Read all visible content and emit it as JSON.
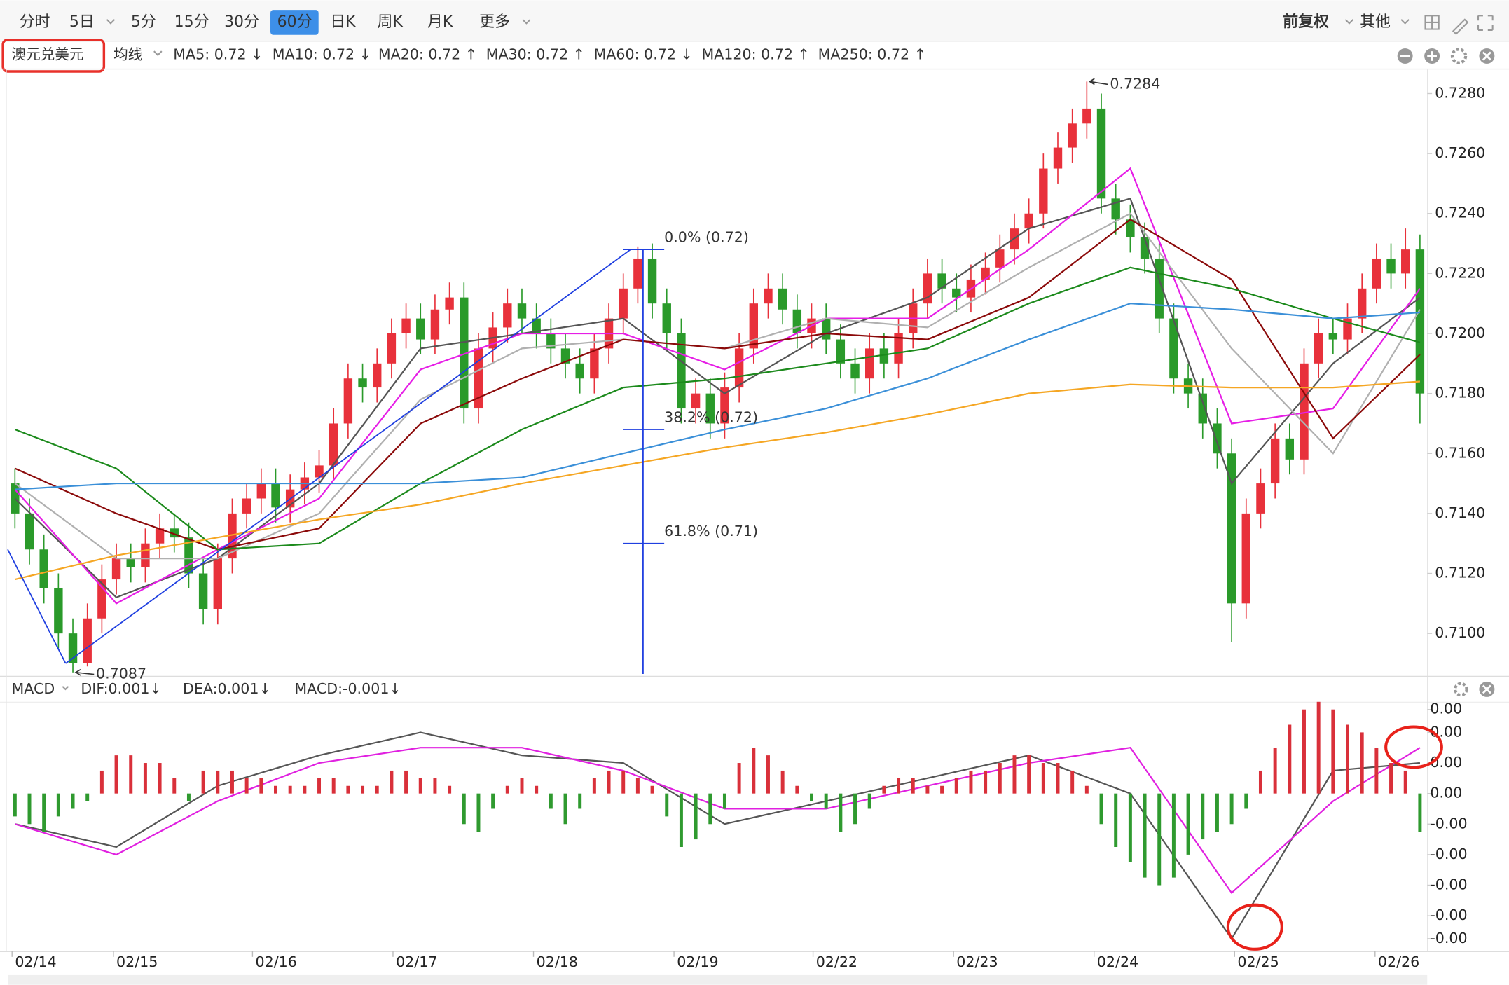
{
  "toolbar": {
    "tabs": [
      "分时",
      "5日",
      "5分",
      "15分",
      "30分",
      "60分",
      "日K",
      "周K",
      "月K",
      "更多"
    ],
    "selected": 5,
    "right": [
      "前复权",
      "其他"
    ]
  },
  "chart_data": [
    {
      "type": "candlestick",
      "title": "澳元兑美元",
      "indicator": "均线",
      "up_color": "#e8313b",
      "down_color": "#2a9a2a",
      "xlim": [
        -0.5,
        97.5
      ],
      "xticks": [
        {
          "value": -0.2,
          "label": "02/14"
        },
        {
          "value": 6.8,
          "label": "02/15"
        },
        {
          "value": 16.4,
          "label": "02/16"
        },
        {
          "value": 26.1,
          "label": "02/17"
        },
        {
          "value": 35.8,
          "label": "02/18"
        },
        {
          "value": 45.5,
          "label": "02/19"
        },
        {
          "value": 55.1,
          "label": "02/22"
        },
        {
          "value": 64.8,
          "label": "02/23"
        },
        {
          "value": 74.5,
          "label": "02/24"
        },
        {
          "value": 84.2,
          "label": "02/25"
        },
        {
          "value": 93.9,
          "label": "02/26"
        }
      ],
      "ylim": [
        0.70865,
        0.7288
      ],
      "yticks": [
        {
          "value": 0.71,
          "label": "0.7100"
        },
        {
          "value": 0.712,
          "label": "0.7120"
        },
        {
          "value": 0.714,
          "label": "0.7140"
        },
        {
          "value": 0.716,
          "label": "0.7160"
        },
        {
          "value": 0.718,
          "label": "0.7180"
        },
        {
          "value": 0.72,
          "label": "0.7200"
        },
        {
          "value": 0.722,
          "label": "0.7220"
        },
        {
          "value": 0.724,
          "label": "0.7240"
        },
        {
          "value": 0.726,
          "label": "0.7260"
        },
        {
          "value": 0.728,
          "label": "0.7280"
        }
      ],
      "open": [
        0.715,
        0.714,
        0.7128,
        0.7115,
        0.71,
        0.709,
        0.7105,
        0.7118,
        0.7125,
        0.7122,
        0.713,
        0.7135,
        0.7132,
        0.712,
        0.7108,
        0.7125,
        0.714,
        0.7145,
        0.715,
        0.7142,
        0.7148,
        0.7152,
        0.7156,
        0.717,
        0.7185,
        0.7182,
        0.719,
        0.72,
        0.7205,
        0.7198,
        0.7208,
        0.7212,
        0.7175,
        0.7195,
        0.7202,
        0.721,
        0.7205,
        0.72,
        0.7195,
        0.719,
        0.7185,
        0.7195,
        0.7205,
        0.7215,
        0.7225,
        0.721,
        0.72,
        0.7175,
        0.718,
        0.717,
        0.7182,
        0.7195,
        0.721,
        0.7215,
        0.7208,
        0.72,
        0.7205,
        0.7198,
        0.719,
        0.7185,
        0.7195,
        0.719,
        0.72,
        0.721,
        0.722,
        0.7215,
        0.7212,
        0.7218,
        0.7222,
        0.7228,
        0.7235,
        0.724,
        0.7255,
        0.7262,
        0.727,
        0.7275,
        0.7245,
        0.7238,
        0.7232,
        0.7225,
        0.7205,
        0.7185,
        0.718,
        0.717,
        0.716,
        0.711,
        0.714,
        0.715,
        0.7165,
        0.7158,
        0.719,
        0.72,
        0.7198,
        0.7205,
        0.7215,
        0.7225,
        0.722,
        0.7228
      ],
      "high": [
        0.7155,
        0.7145,
        0.7133,
        0.712,
        0.7105,
        0.711,
        0.7123,
        0.713,
        0.713,
        0.7135,
        0.714,
        0.714,
        0.7137,
        0.7125,
        0.713,
        0.7145,
        0.715,
        0.7155,
        0.7155,
        0.7153,
        0.7157,
        0.7161,
        0.7175,
        0.719,
        0.719,
        0.7195,
        0.7205,
        0.721,
        0.721,
        0.7213,
        0.7217,
        0.7217,
        0.72,
        0.7207,
        0.7215,
        0.7215,
        0.721,
        0.7205,
        0.72,
        0.7195,
        0.72,
        0.721,
        0.722,
        0.7229,
        0.723,
        0.7215,
        0.7205,
        0.7185,
        0.7185,
        0.7187,
        0.72,
        0.7215,
        0.722,
        0.722,
        0.7213,
        0.721,
        0.721,
        0.7203,
        0.7195,
        0.72,
        0.72,
        0.7205,
        0.7215,
        0.7225,
        0.7225,
        0.722,
        0.7223,
        0.7227,
        0.7233,
        0.724,
        0.7245,
        0.726,
        0.7267,
        0.7275,
        0.7284,
        0.728,
        0.725,
        0.7243,
        0.7237,
        0.723,
        0.721,
        0.719,
        0.7185,
        0.7175,
        0.7165,
        0.7145,
        0.7155,
        0.717,
        0.717,
        0.7195,
        0.7205,
        0.7205,
        0.721,
        0.722,
        0.723,
        0.723,
        0.7235,
        0.7233
      ],
      "low": [
        0.7135,
        0.7123,
        0.711,
        0.7095,
        0.7087,
        0.7089,
        0.71,
        0.7113,
        0.7117,
        0.7117,
        0.7125,
        0.7127,
        0.7115,
        0.7103,
        0.7103,
        0.712,
        0.7135,
        0.714,
        0.7137,
        0.7137,
        0.7143,
        0.7147,
        0.7151,
        0.7165,
        0.7177,
        0.7177,
        0.7185,
        0.7195,
        0.7193,
        0.7193,
        0.7203,
        0.717,
        0.717,
        0.719,
        0.7197,
        0.72,
        0.7195,
        0.719,
        0.7185,
        0.718,
        0.718,
        0.719,
        0.72,
        0.721,
        0.7205,
        0.7195,
        0.717,
        0.717,
        0.7165,
        0.7165,
        0.7177,
        0.719,
        0.7205,
        0.7203,
        0.7195,
        0.7195,
        0.7193,
        0.7185,
        0.718,
        0.718,
        0.7185,
        0.7185,
        0.7195,
        0.7205,
        0.721,
        0.7207,
        0.7207,
        0.7213,
        0.7217,
        0.7223,
        0.723,
        0.7235,
        0.725,
        0.7257,
        0.7265,
        0.724,
        0.7233,
        0.7227,
        0.722,
        0.72,
        0.718,
        0.7175,
        0.7165,
        0.7155,
        0.7097,
        0.7105,
        0.7135,
        0.7145,
        0.7153,
        0.7153,
        0.7185,
        0.7193,
        0.7193,
        0.72,
        0.721,
        0.7215,
        0.7215,
        0.717
      ],
      "close": [
        0.714,
        0.7128,
        0.7115,
        0.71,
        0.709,
        0.7105,
        0.7118,
        0.7125,
        0.7122,
        0.713,
        0.7135,
        0.7132,
        0.712,
        0.7108,
        0.7125,
        0.714,
        0.7145,
        0.715,
        0.7142,
        0.7148,
        0.7152,
        0.7156,
        0.717,
        0.7185,
        0.7182,
        0.719,
        0.72,
        0.7205,
        0.7198,
        0.7208,
        0.7212,
        0.7175,
        0.7195,
        0.7202,
        0.721,
        0.7205,
        0.72,
        0.7195,
        0.719,
        0.7185,
        0.7195,
        0.7205,
        0.7215,
        0.7225,
        0.721,
        0.72,
        0.7175,
        0.718,
        0.717,
        0.7182,
        0.7195,
        0.721,
        0.7215,
        0.7208,
        0.72,
        0.7205,
        0.7198,
        0.719,
        0.7185,
        0.7195,
        0.719,
        0.72,
        0.721,
        0.722,
        0.7215,
        0.7212,
        0.7218,
        0.7222,
        0.7228,
        0.7235,
        0.724,
        0.7255,
        0.7262,
        0.727,
        0.7275,
        0.7245,
        0.7238,
        0.7232,
        0.7225,
        0.7205,
        0.7185,
        0.718,
        0.717,
        0.716,
        0.711,
        0.714,
        0.715,
        0.7165,
        0.7158,
        0.719,
        0.72,
        0.7198,
        0.7205,
        0.7215,
        0.7225,
        0.722,
        0.7228,
        0.718
      ],
      "series": [
        {
          "name": "MA5: 0.72 ↓",
          "color": "#555555",
          "x": [
            0,
            7,
            14,
            21,
            28,
            35,
            42,
            49,
            56,
            63,
            70,
            77,
            84,
            91,
            97
          ],
          "values": [
            0.7145,
            0.7112,
            0.7125,
            0.715,
            0.7195,
            0.72,
            0.7205,
            0.718,
            0.72,
            0.7212,
            0.7235,
            0.7245,
            0.715,
            0.719,
            0.7212
          ]
        },
        {
          "name": "MA10: 0.72 ↓",
          "color": "#e61ee6",
          "x": [
            0,
            7,
            14,
            21,
            28,
            35,
            42,
            49,
            56,
            63,
            70,
            77,
            84,
            91,
            97
          ],
          "values": [
            0.7148,
            0.711,
            0.7128,
            0.7145,
            0.7188,
            0.72,
            0.72,
            0.7188,
            0.7205,
            0.7205,
            0.7228,
            0.7255,
            0.717,
            0.7175,
            0.7215
          ]
        },
        {
          "name": "MA20: 0.72 ↑",
          "color": "#b0b0b0",
          "x": [
            0,
            7,
            14,
            21,
            28,
            35,
            42,
            49,
            56,
            63,
            70,
            77,
            84,
            91,
            97
          ],
          "values": [
            0.715,
            0.7125,
            0.7125,
            0.714,
            0.7178,
            0.7195,
            0.7198,
            0.7195,
            0.7205,
            0.7202,
            0.7222,
            0.724,
            0.7195,
            0.716,
            0.7208
          ]
        },
        {
          "name": "MA30: 0.72 ↑",
          "color": "#8b0a0a",
          "x": [
            0,
            7,
            14,
            21,
            28,
            35,
            42,
            49,
            56,
            63,
            70,
            77,
            84,
            91,
            97
          ],
          "values": [
            0.7155,
            0.714,
            0.7128,
            0.7135,
            0.717,
            0.7185,
            0.7198,
            0.7195,
            0.72,
            0.7198,
            0.7212,
            0.7238,
            0.7218,
            0.7165,
            0.7193
          ]
        },
        {
          "name": "MA60: 0.72 ↓",
          "color": "#1c8a1c",
          "x": [
            0,
            7,
            14,
            21,
            28,
            35,
            42,
            49,
            56,
            63,
            70,
            77,
            84,
            91,
            97
          ],
          "values": [
            0.7168,
            0.7155,
            0.7128,
            0.713,
            0.715,
            0.7168,
            0.7182,
            0.7185,
            0.719,
            0.7195,
            0.721,
            0.7222,
            0.7215,
            0.7205,
            0.7197
          ]
        },
        {
          "name": "MA120: 0.72 ↑",
          "color": "#3a8fd8",
          "x": [
            0,
            7,
            14,
            21,
            28,
            35,
            42,
            49,
            56,
            63,
            70,
            77,
            84,
            91,
            97
          ],
          "values": [
            0.7148,
            0.715,
            0.715,
            0.715,
            0.715,
            0.7152,
            0.716,
            0.7168,
            0.7175,
            0.7185,
            0.7198,
            0.721,
            0.7208,
            0.7205,
            0.7207
          ]
        },
        {
          "name": "MA250: 0.72 ↑",
          "color": "#f5a623",
          "x": [
            0,
            7,
            14,
            21,
            28,
            35,
            42,
            49,
            56,
            63,
            70,
            77,
            84,
            91,
            97
          ],
          "values": [
            0.7118,
            0.7126,
            0.7132,
            0.7138,
            0.7143,
            0.715,
            0.7156,
            0.7162,
            0.7167,
            0.7173,
            0.718,
            0.7183,
            0.7182,
            0.7182,
            0.7184
          ]
        }
      ],
      "annotations": [
        {
          "x": 74,
          "value": 0.7284
        },
        {
          "x": 4,
          "value": 0.7087
        }
      ],
      "fibonacci": {
        "color": "#1f3fe0",
        "points": [
          {
            "x": -0.5,
            "value": 0.7128
          },
          {
            "x": 3.5,
            "value": 0.709
          },
          {
            "x": 42.5,
            "value": 0.7228
          }
        ],
        "levels": [
          {
            "value": 0.7228,
            "label": "0.0% (0.72)"
          },
          {
            "value": 0.7168,
            "label": "38.2% (0.72)"
          },
          {
            "value": 0.713,
            "label": "61.8% (0.71)"
          }
        ]
      }
    },
    {
      "type": "macd",
      "title": "MACD",
      "xlim": [
        -0.5,
        97.5
      ],
      "ylim": [
        -0.0020625,
        0.0011875
      ],
      "yticks": [
        {
          "value": 0.0011,
          "label": "0.00"
        },
        {
          "value": 0.0008,
          "label": "0.00"
        },
        {
          "value": 0.0004,
          "label": "0.00"
        },
        {
          "value": 0,
          "label": "0.00"
        },
        {
          "value": -0.0004,
          "label": "-0.00"
        },
        {
          "value": -0.0008,
          "label": "-0.00"
        },
        {
          "value": -0.0012,
          "label": "-0.00"
        },
        {
          "value": -0.0016,
          "label": "-0.00"
        },
        {
          "value": -0.0019,
          "label": "-0.00"
        }
      ],
      "series": [
        {
          "name": "DIF:0.001↓",
          "color": "#555555",
          "x": [
            0,
            7,
            14,
            21,
            28,
            35,
            42,
            49,
            56,
            63,
            70,
            77,
            84,
            91,
            97
          ],
          "values": [
            -0.0004,
            -0.0007,
            0.0001,
            0.0005,
            0.0008,
            0.0005,
            0.0004,
            -0.0004,
            -0.0001,
            0.0002,
            0.0005,
            0.0,
            -0.0019,
            0.0003,
            0.0004
          ]
        },
        {
          "name": "DEA:0.001↓",
          "color": "#e020e0",
          "x": [
            0,
            7,
            14,
            21,
            28,
            35,
            42,
            49,
            56,
            63,
            70,
            77,
            84,
            91,
            97
          ],
          "values": [
            -0.0004,
            -0.0008,
            -0.0001,
            0.0004,
            0.0006,
            0.0006,
            0.0003,
            -0.0002,
            -0.0002,
            0.0001,
            0.0004,
            0.0006,
            -0.0013,
            -0.0001,
            0.0006
          ]
        },
        {
          "name": "MACD:-0.001↓",
          "color": "#2f9a2f",
          "up_color": "#d9303a",
          "down_color": "#2f9a2f",
          "values": [
            -0.0003,
            -0.0004,
            -0.0005,
            -0.0003,
            -0.0002,
            -0.0001,
            0.0003,
            0.0005,
            0.0005,
            0.0004,
            0.0004,
            0.0002,
            -0.0001,
            0.0003,
            0.0003,
            0.0003,
            0.0002,
            0.0002,
            0.0001,
            0.0001,
            0.0001,
            0.0002,
            0.0002,
            0.0001,
            0.0001,
            0.0001,
            0.0003,
            0.0003,
            0.0002,
            0.0002,
            0.0001,
            -0.0004,
            -0.0005,
            -0.0002,
            0.0001,
            0.0002,
            0.0001,
            -0.0002,
            -0.0004,
            -0.0002,
            0.0002,
            0.0003,
            0.0003,
            0.0002,
            0.0001,
            -0.0003,
            -0.0007,
            -0.0006,
            -0.0004,
            -0.0002,
            0.0004,
            0.0006,
            0.0005,
            0.0003,
            0.0001,
            -0.0001,
            -0.0002,
            -0.0005,
            -0.0004,
            -0.0002,
            0.0001,
            0.0002,
            0.0002,
            0.0001,
            0.0001,
            0.0002,
            0.0003,
            0.0003,
            0.0004,
            0.0005,
            0.0005,
            0.0004,
            0.0004,
            0.0003,
            0.0001,
            -0.0004,
            -0.0007,
            -0.0009,
            -0.0011,
            -0.0012,
            -0.0011,
            -0.0008,
            -0.0006,
            -0.0005,
            -0.0004,
            -0.0002,
            0.0003,
            0.0006,
            0.0009,
            0.0011,
            0.0012,
            0.0011,
            0.0009,
            0.0008,
            0.0006,
            0.0004,
            0.0003,
            -0.0005
          ]
        }
      ]
    }
  ]
}
